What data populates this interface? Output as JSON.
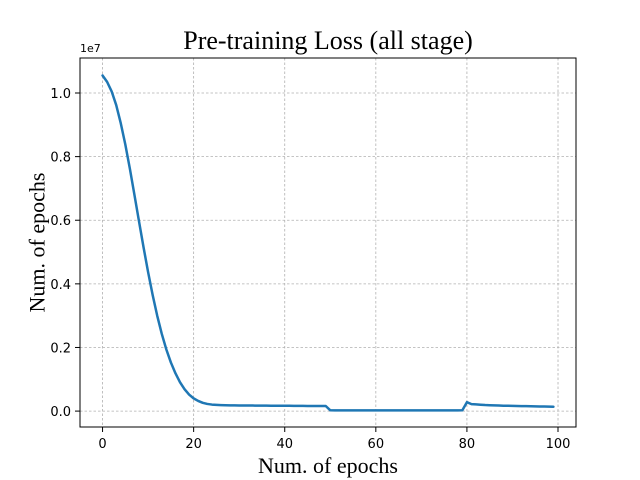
{
  "chart_data": {
    "type": "line",
    "title": "Pre-training Loss (all stage)",
    "xlabel": "Num. of epochs",
    "ylabel": "Num. of epochs",
    "y_offset_label": "1e7",
    "xlim": [
      -4.95,
      103.95
    ],
    "ylim": [
      -0.05,
      1.11
    ],
    "xticks": [
      0,
      20,
      40,
      60,
      80,
      100
    ],
    "xtick_labels": [
      "0",
      "20",
      "40",
      "60",
      "80",
      "100"
    ],
    "yticks": [
      0.0,
      0.2,
      0.4,
      0.6,
      0.8,
      1.0
    ],
    "ytick_labels": [
      "0.0",
      "0.2",
      "0.4",
      "0.6",
      "0.8",
      "1.0"
    ],
    "grid": true,
    "line_color": "#1f77b4",
    "series": [
      {
        "x": [
          0,
          1,
          2,
          3,
          4,
          5,
          6,
          7,
          8,
          9,
          10,
          11,
          12,
          13,
          14,
          15,
          16,
          17,
          18,
          19,
          20,
          21,
          22,
          23,
          24,
          25,
          26,
          27,
          28,
          29,
          30,
          31,
          32,
          33,
          34,
          35,
          36,
          37,
          38,
          39,
          40,
          41,
          42,
          43,
          44,
          45,
          46,
          47,
          48,
          49,
          50,
          51,
          52,
          53,
          54,
          55,
          56,
          57,
          58,
          59,
          60,
          61,
          62,
          63,
          64,
          65,
          66,
          67,
          68,
          69,
          70,
          71,
          72,
          73,
          74,
          75,
          76,
          77,
          78,
          79,
          80,
          81,
          82,
          83,
          84,
          85,
          86,
          87,
          88,
          89,
          90,
          91,
          92,
          93,
          94,
          95,
          96,
          97,
          98,
          99
        ],
        "values": [
          1.055,
          1.035,
          1.005,
          0.962,
          0.905,
          0.838,
          0.762,
          0.68,
          0.597,
          0.515,
          0.437,
          0.365,
          0.3,
          0.243,
          0.194,
          0.153,
          0.119,
          0.091,
          0.069,
          0.052,
          0.04,
          0.032,
          0.026,
          0.0225,
          0.0205,
          0.0195,
          0.0188,
          0.0184,
          0.0181,
          0.0179,
          0.0177,
          0.0176,
          0.0175,
          0.0174,
          0.0173,
          0.0172,
          0.0171,
          0.017,
          0.0169,
          0.0168,
          0.0167,
          0.0166,
          0.0165,
          0.0164,
          0.0163,
          0.0162,
          0.0161,
          0.016,
          0.016,
          0.016,
          0.0025,
          0.0024,
          0.0024,
          0.0024,
          0.0024,
          0.0024,
          0.0024,
          0.0024,
          0.0024,
          0.0024,
          0.0024,
          0.0024,
          0.0024,
          0.0024,
          0.0024,
          0.0024,
          0.0024,
          0.0024,
          0.0024,
          0.0024,
          0.0024,
          0.0024,
          0.0024,
          0.0024,
          0.0024,
          0.0024,
          0.0024,
          0.0024,
          0.0024,
          0.0025,
          0.028,
          0.022,
          0.021,
          0.02,
          0.019,
          0.0185,
          0.018,
          0.0175,
          0.017,
          0.0167,
          0.0164,
          0.0161,
          0.0158,
          0.0155,
          0.0152,
          0.0149,
          0.0146,
          0.0143,
          0.014,
          0.0137
        ]
      }
    ]
  }
}
